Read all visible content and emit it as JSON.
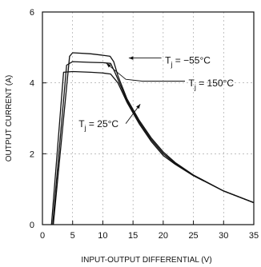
{
  "chart_data": {
    "type": "line",
    "title": "",
    "xlabel": "INPUT-OUTPUT DIFFERENTIAL (V)",
    "ylabel": "OUTPUT CURRENT (A)",
    "xlim": [
      0,
      35
    ],
    "ylim": [
      0,
      6
    ],
    "x_ticks": [
      "0",
      "5",
      "10",
      "15",
      "20",
      "25",
      "30",
      "35"
    ],
    "y_ticks": [
      "0",
      "2",
      "4",
      "6"
    ],
    "grid": true,
    "series": [
      {
        "name": "Tj = −55°C",
        "points": [
          [
            1.8,
            0
          ],
          [
            4.5,
            4.75
          ],
          [
            5,
            4.85
          ],
          [
            8,
            4.82
          ],
          [
            10,
            4.78
          ],
          [
            11.2,
            4.75
          ],
          [
            11.8,
            4.6
          ],
          [
            12.5,
            4.2
          ],
          [
            14,
            3.55
          ],
          [
            16,
            2.95
          ],
          [
            18,
            2.45
          ],
          [
            20,
            2.05
          ],
          [
            22,
            1.75
          ],
          [
            25,
            1.4
          ],
          [
            30,
            0.95
          ],
          [
            35,
            0.62
          ]
        ]
      },
      {
        "name": "Tj = 150°C",
        "points": [
          [
            1.5,
            0
          ],
          [
            3.5,
            4.3
          ],
          [
            5,
            4.32
          ],
          [
            8,
            4.3
          ],
          [
            10,
            4.28
          ],
          [
            11.3,
            4.25
          ],
          [
            12.5,
            4.0
          ],
          [
            14,
            3.45
          ],
          [
            16,
            2.85
          ],
          [
            18,
            2.35
          ],
          [
            20,
            1.95
          ],
          [
            22,
            1.7
          ],
          [
            25,
            1.38
          ],
          [
            30,
            0.95
          ],
          [
            35,
            0.62
          ]
        ]
      },
      {
        "name": "Tj = 25°C",
        "points": [
          [
            1.7,
            0
          ],
          [
            4,
            4.5
          ],
          [
            5,
            4.6
          ],
          [
            8,
            4.58
          ],
          [
            10,
            4.57
          ],
          [
            11.3,
            4.55
          ],
          [
            12,
            4.3
          ],
          [
            13,
            3.9
          ],
          [
            14,
            3.5
          ],
          [
            16,
            2.9
          ],
          [
            18,
            2.4
          ],
          [
            20,
            2.0
          ],
          [
            22,
            1.72
          ],
          [
            25,
            1.39
          ],
          [
            30,
            0.95
          ],
          [
            35,
            0.62
          ]
        ]
      }
    ],
    "annotations": [
      {
        "text_parts": [
          "T",
          "j",
          " = −55°C"
        ],
        "label_at": [
          20.3,
          4.55
        ],
        "arrow": [
          [
            19.7,
            4.7
          ],
          [
            14.3,
            4.7
          ]
        ]
      },
      {
        "text_parts": [
          "T",
          "j",
          " = 150°C"
        ],
        "label_at": [
          24.2,
          3.9
        ],
        "arrow": [
          [
            23.6,
            4.05
          ],
          [
            16.5,
            4.05
          ],
          [
            13.8,
            4.1
          ],
          [
            10.6,
            4.55
          ]
        ]
      },
      {
        "text_parts": [
          "T",
          "j",
          " = 25°C"
        ],
        "label_at": [
          6.0,
          2.75
        ],
        "arrow": [
          [
            13.8,
            2.85
          ],
          [
            16.2,
            3.4
          ]
        ]
      }
    ]
  }
}
